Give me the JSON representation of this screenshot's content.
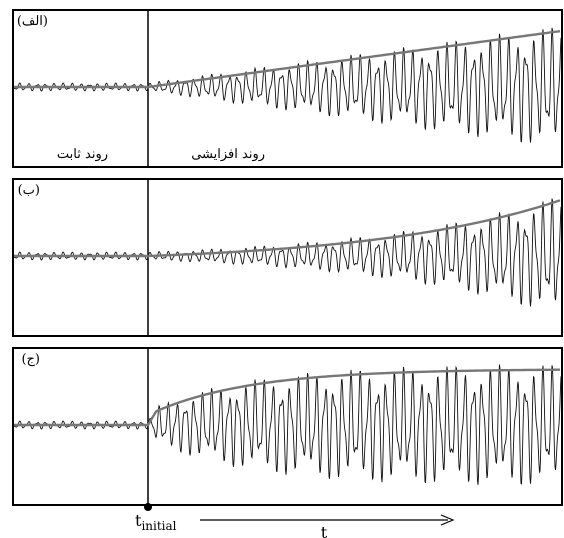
{
  "panels": [
    {
      "label": "(الف)",
      "left_region_label": "روند ثابت",
      "right_region_label": "روند افزایشی",
      "growth": "linear"
    },
    {
      "label": "(ب)",
      "left_region_label": "",
      "right_region_label": "",
      "growth": "exponential"
    },
    {
      "label": "(ج)",
      "left_region_label": "",
      "right_region_label": "",
      "growth": "saturating"
    }
  ],
  "time_axis": {
    "start_label_main": "t",
    "start_label_sub": "initial",
    "axis_label": "t"
  },
  "colors": {
    "signal": "#111111",
    "trend": "#777777",
    "frame": "#000000"
  }
}
